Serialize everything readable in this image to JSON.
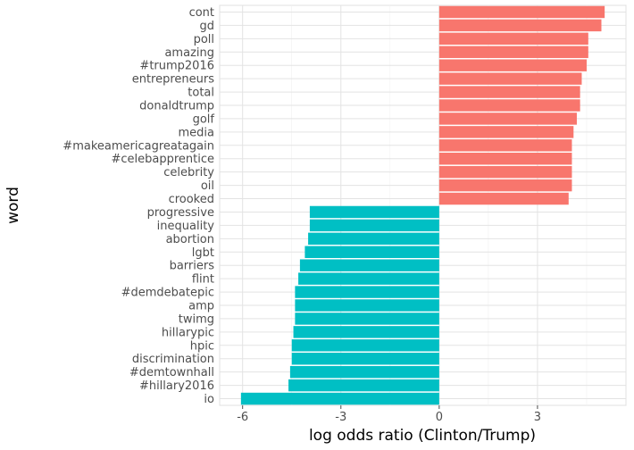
{
  "chart_data": {
    "type": "bar",
    "orientation": "horizontal",
    "title": "",
    "xlabel": "log odds ratio (Clinton/Trump)",
    "ylabel": "word",
    "xlim": [
      -6.7,
      5.7
    ],
    "x_ticks": [
      -6,
      -3,
      0,
      3
    ],
    "x_tick_labels": [
      "-6",
      "-3",
      "0",
      "3"
    ],
    "grid": true,
    "legend": "none",
    "colors": {
      "positive": "#F8766D",
      "negative": "#00BFC4"
    },
    "categories": [
      "cont",
      "gd",
      "poll",
      "amazing",
      "#trump2016",
      "entrepreneurs",
      "total",
      "donaldtrump",
      "golf",
      "media",
      "#makeamericagreatagain",
      "#celebapprentice",
      "celebrity",
      "oil",
      "crooked",
      "progressive",
      "inequality",
      "abortion",
      "lgbt",
      "barriers",
      "flint",
      "#demdebatepic",
      "amp",
      "twimg",
      "hillarypic",
      "hpic",
      "discrimination",
      "#demtownhall",
      "#hillary2016",
      "io"
    ],
    "values": [
      5.05,
      4.95,
      4.55,
      4.55,
      4.5,
      4.35,
      4.3,
      4.3,
      4.2,
      4.1,
      4.05,
      4.05,
      4.05,
      4.05,
      3.95,
      -3.95,
      -3.95,
      -4.0,
      -4.1,
      -4.25,
      -4.3,
      -4.4,
      -4.4,
      -4.4,
      -4.45,
      -4.5,
      -4.5,
      -4.55,
      -4.6,
      -6.05
    ]
  }
}
